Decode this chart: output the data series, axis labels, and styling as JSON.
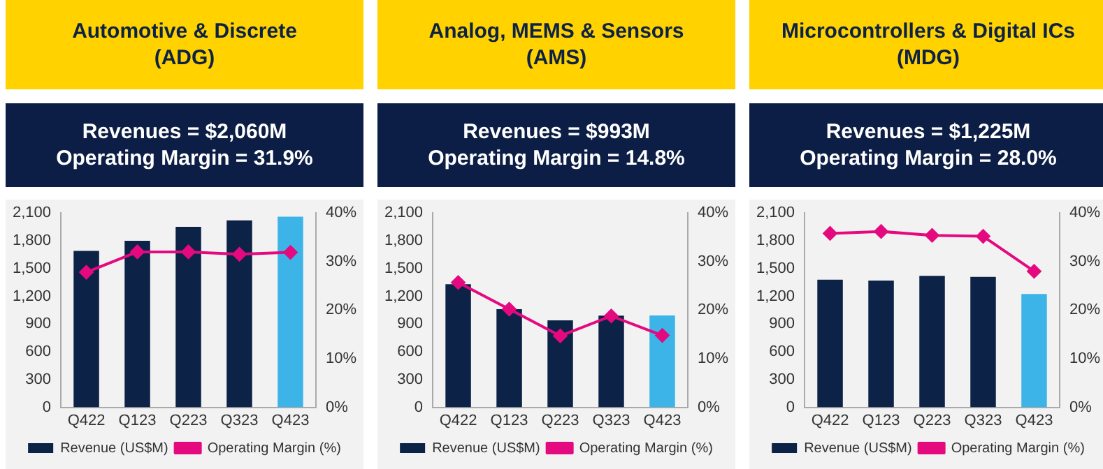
{
  "chart_data": [
    {
      "type": "bar",
      "title": "Automotive & Discrete\n(ADG)",
      "subtitle": "Revenues = $2,060M\nOperating Margin = 31.9%",
      "categories": [
        "Q422",
        "Q123",
        "Q223",
        "Q323",
        "Q423"
      ],
      "series": [
        {
          "name": "Revenue (US$M)",
          "colors": [
            "#0d2247",
            "#0d2247",
            "#0d2247",
            "#0d2247",
            "#3db4e8"
          ],
          "values": [
            1690,
            1800,
            1950,
            2020,
            2060
          ]
        },
        {
          "name": "Operating Margin (%)",
          "type": "line",
          "axis": "y2",
          "color": "#e5097f",
          "values": [
            27.8,
            32.0,
            32.0,
            31.5,
            31.9
          ]
        }
      ],
      "ylim": [
        0,
        2100
      ],
      "yticks": [
        0,
        300,
        600,
        900,
        {
          "value": 1200,
          "label": "1,200"
        },
        {
          "value": 1500,
          "label": "1,500"
        },
        {
          "value": 1800,
          "label": "1,800"
        },
        {
          "value": 2100,
          "label": "2,100"
        }
      ],
      "y2lim": [
        0,
        40
      ],
      "y2ticks": [
        {
          "value": 0,
          "label": "0%"
        },
        {
          "value": 10,
          "label": "10%"
        },
        {
          "value": 20,
          "label": "20%"
        },
        {
          "value": 30,
          "label": "30%"
        },
        {
          "value": 40,
          "label": "40%"
        }
      ],
      "marker": "diamond",
      "legend": "bottom"
    },
    {
      "type": "bar",
      "title": "Analog, MEMS & Sensors\n(AMS)",
      "subtitle": "Revenues = $993M\nOperating Margin = 14.8%",
      "categories": [
        "Q422",
        "Q123",
        "Q223",
        "Q323",
        "Q423"
      ],
      "series": [
        {
          "name": "Revenue (US$M)",
          "colors": [
            "#0d2247",
            "#0d2247",
            "#0d2247",
            "#0d2247",
            "#3db4e8"
          ],
          "values": [
            1330,
            1060,
            940,
            990,
            993
          ]
        },
        {
          "name": "Operating Margin (%)",
          "type": "line",
          "axis": "y2",
          "color": "#e5097f",
          "values": [
            25.7,
            20.2,
            14.7,
            18.8,
            14.8
          ]
        }
      ],
      "ylim": [
        0,
        2100
      ],
      "yticks": [
        0,
        300,
        600,
        900,
        {
          "value": 1200,
          "label": "1,200"
        },
        {
          "value": 1500,
          "label": "1,500"
        },
        {
          "value": 1800,
          "label": "1,800"
        },
        {
          "value": 2100,
          "label": "2,100"
        }
      ],
      "y2lim": [
        0,
        40
      ],
      "y2ticks": [
        {
          "value": 0,
          "label": "0%"
        },
        {
          "value": 10,
          "label": "10%"
        },
        {
          "value": 20,
          "label": "20%"
        },
        {
          "value": 30,
          "label": "30%"
        },
        {
          "value": 40,
          "label": "40%"
        }
      ],
      "marker": "diamond",
      "legend": "bottom"
    },
    {
      "type": "bar",
      "title": "Microcontrollers & Digital ICs\n(MDG)",
      "subtitle": "Revenues = $1,225M\nOperating Margin = 28.0%",
      "categories": [
        "Q422",
        "Q123",
        "Q223",
        "Q323",
        "Q423"
      ],
      "series": [
        {
          "name": "Revenue (US$M)",
          "colors": [
            "#0d2247",
            "#0d2247",
            "#0d2247",
            "#0d2247",
            "#3db4e8"
          ],
          "values": [
            1380,
            1370,
            1420,
            1410,
            1225
          ]
        },
        {
          "name": "Operating Margin (%)",
          "type": "line",
          "axis": "y2",
          "color": "#e5097f",
          "values": [
            35.8,
            36.2,
            35.4,
            35.2,
            28.0
          ]
        }
      ],
      "ylim": [
        0,
        2100
      ],
      "yticks": [
        0,
        300,
        600,
        900,
        {
          "value": 1200,
          "label": "1,200"
        },
        {
          "value": 1500,
          "label": "1,500"
        },
        {
          "value": 1800,
          "label": "1,800"
        },
        {
          "value": 2100,
          "label": "2,100"
        }
      ],
      "y2lim": [
        0,
        40
      ],
      "y2ticks": [
        {
          "value": 0,
          "label": "0%"
        },
        {
          "value": 10,
          "label": "10%"
        },
        {
          "value": 20,
          "label": "20%"
        },
        {
          "value": 30,
          "label": "30%"
        },
        {
          "value": 40,
          "label": "40%"
        }
      ],
      "marker": "diamond",
      "legend": "bottom"
    }
  ]
}
